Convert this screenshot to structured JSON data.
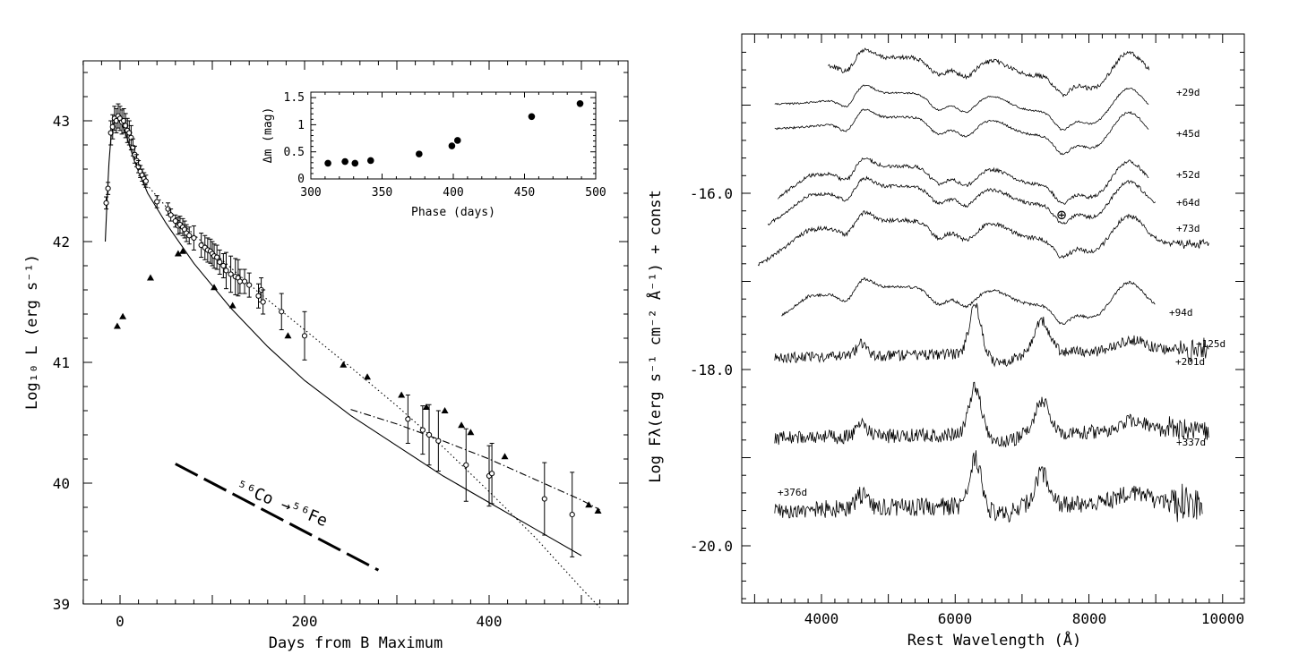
{
  "chart_data": [
    {
      "type": "scatter",
      "xlabel": "Days from B Maximum",
      "ylabel": "Log₁₀ L (erg s⁻¹)",
      "xlim": [
        -40,
        553
      ],
      "ylim": [
        39,
        43.5
      ],
      "xticks": [
        "0",
        "200",
        "400"
      ],
      "yticks": [
        "39",
        "40",
        "41",
        "42",
        "43"
      ],
      "annotation": {
        "text": "⁵⁶Co →⁵⁶Fe"
      },
      "series": [
        {
          "kind": "circles_with_errorbars",
          "x": [
            -15,
            -13,
            -10,
            -8,
            -6,
            -4,
            -2,
            0,
            2,
            4,
            6,
            8,
            10,
            12,
            14,
            16,
            18,
            20,
            22,
            24,
            26,
            28,
            40,
            52,
            55,
            60,
            63,
            65,
            68,
            70,
            72,
            75,
            80,
            88,
            92,
            95,
            98,
            100,
            102,
            105,
            108,
            112,
            115,
            120,
            125,
            128,
            130,
            135,
            140,
            150,
            153,
            155,
            175,
            200,
            312,
            328,
            335,
            345,
            375,
            400,
            403,
            460,
            490
          ],
          "y": [
            42.32,
            42.44,
            42.9,
            42.95,
            43.02,
            43.0,
            43.04,
            43.02,
            42.99,
            43.0,
            42.96,
            42.92,
            42.9,
            42.86,
            42.78,
            42.72,
            42.67,
            42.62,
            42.58,
            42.55,
            42.52,
            42.5,
            42.33,
            42.27,
            42.22,
            42.17,
            42.13,
            42.14,
            42.12,
            42.1,
            42.07,
            42.05,
            42.03,
            41.97,
            41.95,
            41.93,
            41.92,
            41.9,
            41.88,
            41.87,
            41.83,
            41.8,
            41.76,
            41.73,
            41.71,
            41.7,
            41.67,
            41.67,
            41.64,
            41.55,
            41.6,
            41.5,
            41.42,
            41.22,
            40.53,
            40.44,
            40.4,
            40.35,
            40.15,
            40.06,
            40.08,
            39.87,
            39.74
          ],
          "yerr": [
            0.05,
            0.05,
            0.1,
            0.1,
            0.1,
            0.1,
            0.1,
            0.1,
            0.1,
            0.1,
            0.1,
            0.1,
            0.1,
            0.1,
            0.07,
            0.07,
            0.05,
            0.05,
            0.05,
            0.05,
            0.05,
            0.05,
            0.05,
            0.05,
            0.05,
            0.05,
            0.07,
            0.07,
            0.07,
            0.07,
            0.07,
            0.07,
            0.1,
            0.1,
            0.1,
            0.1,
            0.1,
            0.1,
            0.1,
            0.1,
            0.1,
            0.1,
            0.15,
            0.15,
            0.15,
            0.15,
            0.1,
            0.1,
            0.1,
            0.1,
            0.1,
            0.1,
            0.15,
            0.2,
            0.2,
            0.2,
            0.25,
            0.25,
            0.3,
            0.25,
            0.25,
            0.3,
            0.35
          ]
        },
        {
          "kind": "triangles",
          "x": [
            -3,
            3,
            33,
            63,
            68,
            102,
            122,
            182,
            242,
            268,
            305,
            332,
            352,
            370,
            380,
            417,
            508,
            518
          ],
          "y": [
            41.3,
            41.38,
            41.7,
            41.9,
            41.92,
            41.62,
            41.47,
            41.22,
            40.98,
            40.88,
            40.73,
            40.63,
            40.6,
            40.48,
            40.42,
            40.22,
            39.82,
            39.77
          ]
        },
        {
          "kind": "solid_line",
          "x": [
            -16,
            -14,
            -12,
            -10,
            -8,
            -6,
            -4,
            -2,
            0,
            3,
            6,
            10,
            15,
            20,
            30,
            50,
            80,
            120,
            160,
            200,
            250,
            300,
            350,
            400,
            450,
            500
          ],
          "y": [
            42.0,
            42.35,
            42.65,
            42.85,
            42.95,
            43.0,
            43.02,
            43.02,
            43.0,
            42.95,
            42.9,
            42.8,
            42.68,
            42.58,
            42.4,
            42.15,
            41.82,
            41.45,
            41.13,
            40.85,
            40.56,
            40.31,
            40.06,
            39.84,
            39.62,
            39.4
          ]
        },
        {
          "kind": "dotted_line",
          "x": [
            20,
            60,
            100,
            150,
            200,
            250,
            300,
            350,
            400,
            450,
            500,
            520
          ],
          "y": [
            42.55,
            42.2,
            41.92,
            41.58,
            41.27,
            40.96,
            40.64,
            40.3,
            39.93,
            39.55,
            39.13,
            38.97
          ]
        },
        {
          "kind": "dash_dot_line",
          "x": [
            250,
            300,
            350,
            400,
            450,
            500,
            520
          ],
          "y": [
            40.61,
            40.49,
            40.35,
            40.2,
            40.03,
            39.86,
            39.78
          ]
        },
        {
          "kind": "long_dash_line",
          "x": [
            60,
            280
          ],
          "y": [
            40.16,
            39.28
          ]
        }
      ]
    },
    {
      "type": "scatter",
      "xlabel": "Phase (days)",
      "ylabel": "Δm (mag)",
      "xlim": [
        300,
        500
      ],
      "ylim": [
        0,
        1.6
      ],
      "xticks": [
        "300",
        "350",
        "400",
        "450",
        "500"
      ],
      "yticks": [
        "0",
        "0.5",
        "1",
        "1.5"
      ],
      "x": [
        312,
        324,
        331,
        342,
        376,
        399,
        403,
        455,
        489
      ],
      "y": [
        0.29,
        0.32,
        0.29,
        0.34,
        0.46,
        0.61,
        0.71,
        1.15,
        1.39
      ]
    },
    {
      "type": "line",
      "xlabel": "Rest Wavelength (Å)",
      "ylabel": "Log Fλ(erg s⁻¹ cm⁻² Å⁻¹) + const",
      "xlim": [
        2800,
        10300
      ],
      "ylim": [
        -20.6,
        -14.4
      ],
      "xticks": [
        "4000",
        "6000",
        "8000",
        "10000"
      ],
      "yticks": [
        "-16.0",
        "-18.0",
        "-20.0"
      ],
      "epochs": [
        "+29d",
        "+45d",
        "+52d",
        "+64d",
        "+73d",
        "+94d",
        "+125d",
        "+201d",
        "+337d",
        "+376d"
      ],
      "telluric_symbol": "⊕"
    }
  ]
}
